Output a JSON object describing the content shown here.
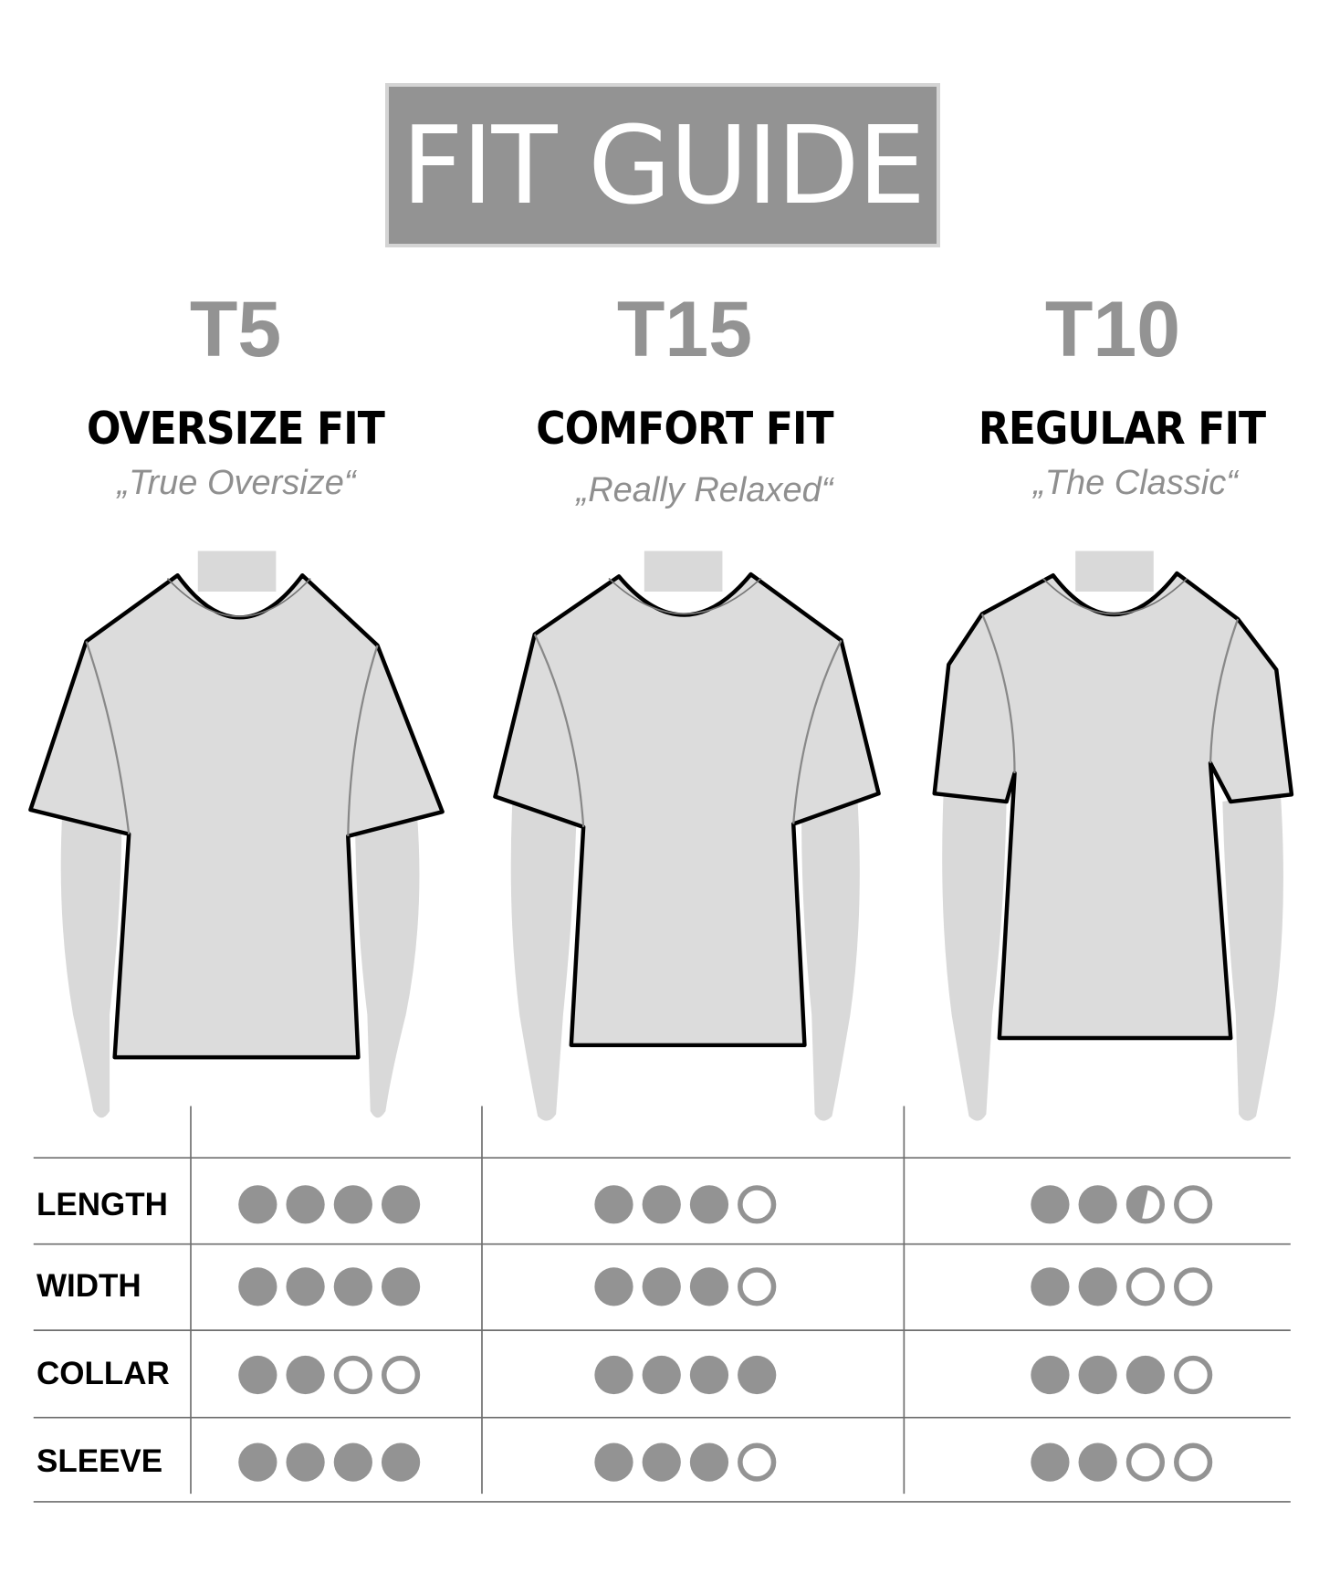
{
  "title": "FIT GUIDE",
  "colors": {
    "accent_gray": "#939393",
    "silhouette": "#d9d9d9",
    "text": "#000000"
  },
  "products": [
    {
      "code": "T5",
      "fit": "OVERSIZE FIT",
      "tagline": "„True Oversize“"
    },
    {
      "code": "T15",
      "fit": "COMFORT FIT",
      "tagline": "„Really Relaxed“"
    },
    {
      "code": "T10",
      "fit": "REGULAR FIT",
      "tagline": "„The Classic“"
    }
  ],
  "ratings_scale_max": 4,
  "ratings": [
    {
      "label": "LENGTH",
      "values": [
        4,
        3,
        2.5
      ]
    },
    {
      "label": "WIDTH",
      "values": [
        4,
        3,
        2
      ]
    },
    {
      "label": "COLLAR",
      "values": [
        2,
        4,
        3
      ]
    },
    {
      "label": "SLEEVE",
      "values": [
        4,
        3,
        2
      ]
    }
  ]
}
